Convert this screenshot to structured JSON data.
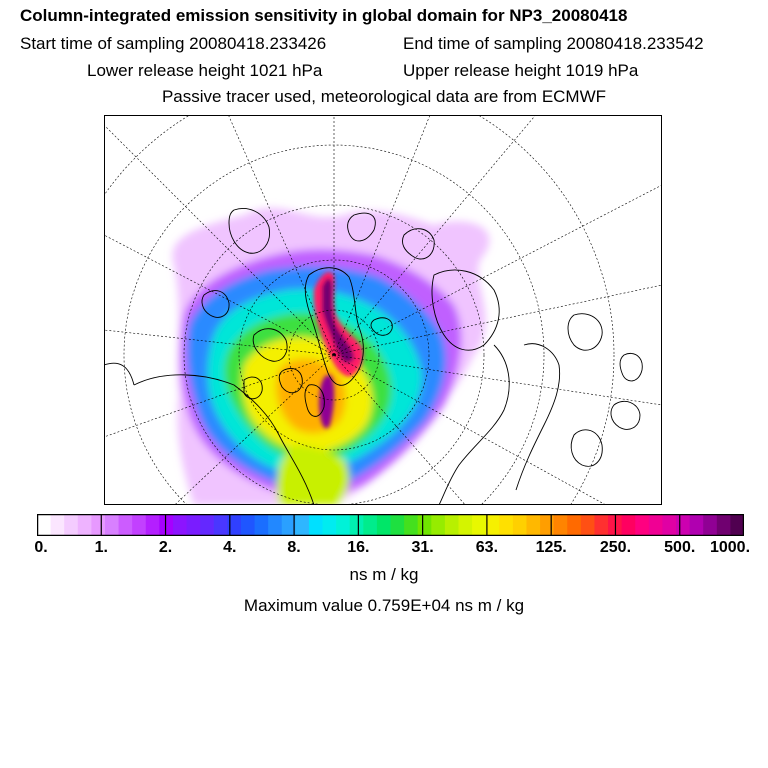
{
  "header": {
    "title": "Column-integrated emission sensitivity in global domain for NP3_20080418",
    "start_time": "Start time of sampling 20080418.233426",
    "end_time": "End time of sampling 20080418.233542",
    "lower_release": "Lower release height 1021 hPa",
    "upper_release": "Upper release height 1019 hPa",
    "tracer_note": "Passive tracer used, meteorological data are from ECMWF"
  },
  "colorbar": {
    "tick_labels": [
      "0.",
      "1.",
      "2.",
      "4.",
      "8.",
      "16.",
      "31.",
      "63.",
      "125.",
      "250.",
      "500.",
      "1000."
    ],
    "colors": [
      "#ffffff",
      "#fbe6ff",
      "#f4ccff",
      "#eeb3ff",
      "#e799ff",
      "#d880ff",
      "#cc5cff",
      "#c240ff",
      "#b41fff",
      "#a600ff",
      "#8c14ff",
      "#7a1cff",
      "#6428ff",
      "#4a37ff",
      "#3040ff",
      "#1f56ff",
      "#1a6eff",
      "#2288ff",
      "#2aa0ff",
      "#2eb6ff",
      "#00e0ff",
      "#00ecf0",
      "#00f2d8",
      "#00f0b0",
      "#00ec8c",
      "#00e668",
      "#1ee040",
      "#44e01e",
      "#70e600",
      "#96ec00",
      "#b8f000",
      "#d4f400",
      "#e8f800",
      "#f6f000",
      "#ffe000",
      "#ffd000",
      "#ffb800",
      "#ff9e00",
      "#ff8400",
      "#ff6a00",
      "#ff5014",
      "#ff3030",
      "#ff1448",
      "#ff0060",
      "#ff0080",
      "#f00094",
      "#e000a4",
      "#cc00b0",
      "#b000b0",
      "#900094",
      "#700070",
      "#500050"
    ],
    "units": "ns m / kg",
    "max_value": "Maximum value  0.759E+04 ns m / kg"
  }
}
